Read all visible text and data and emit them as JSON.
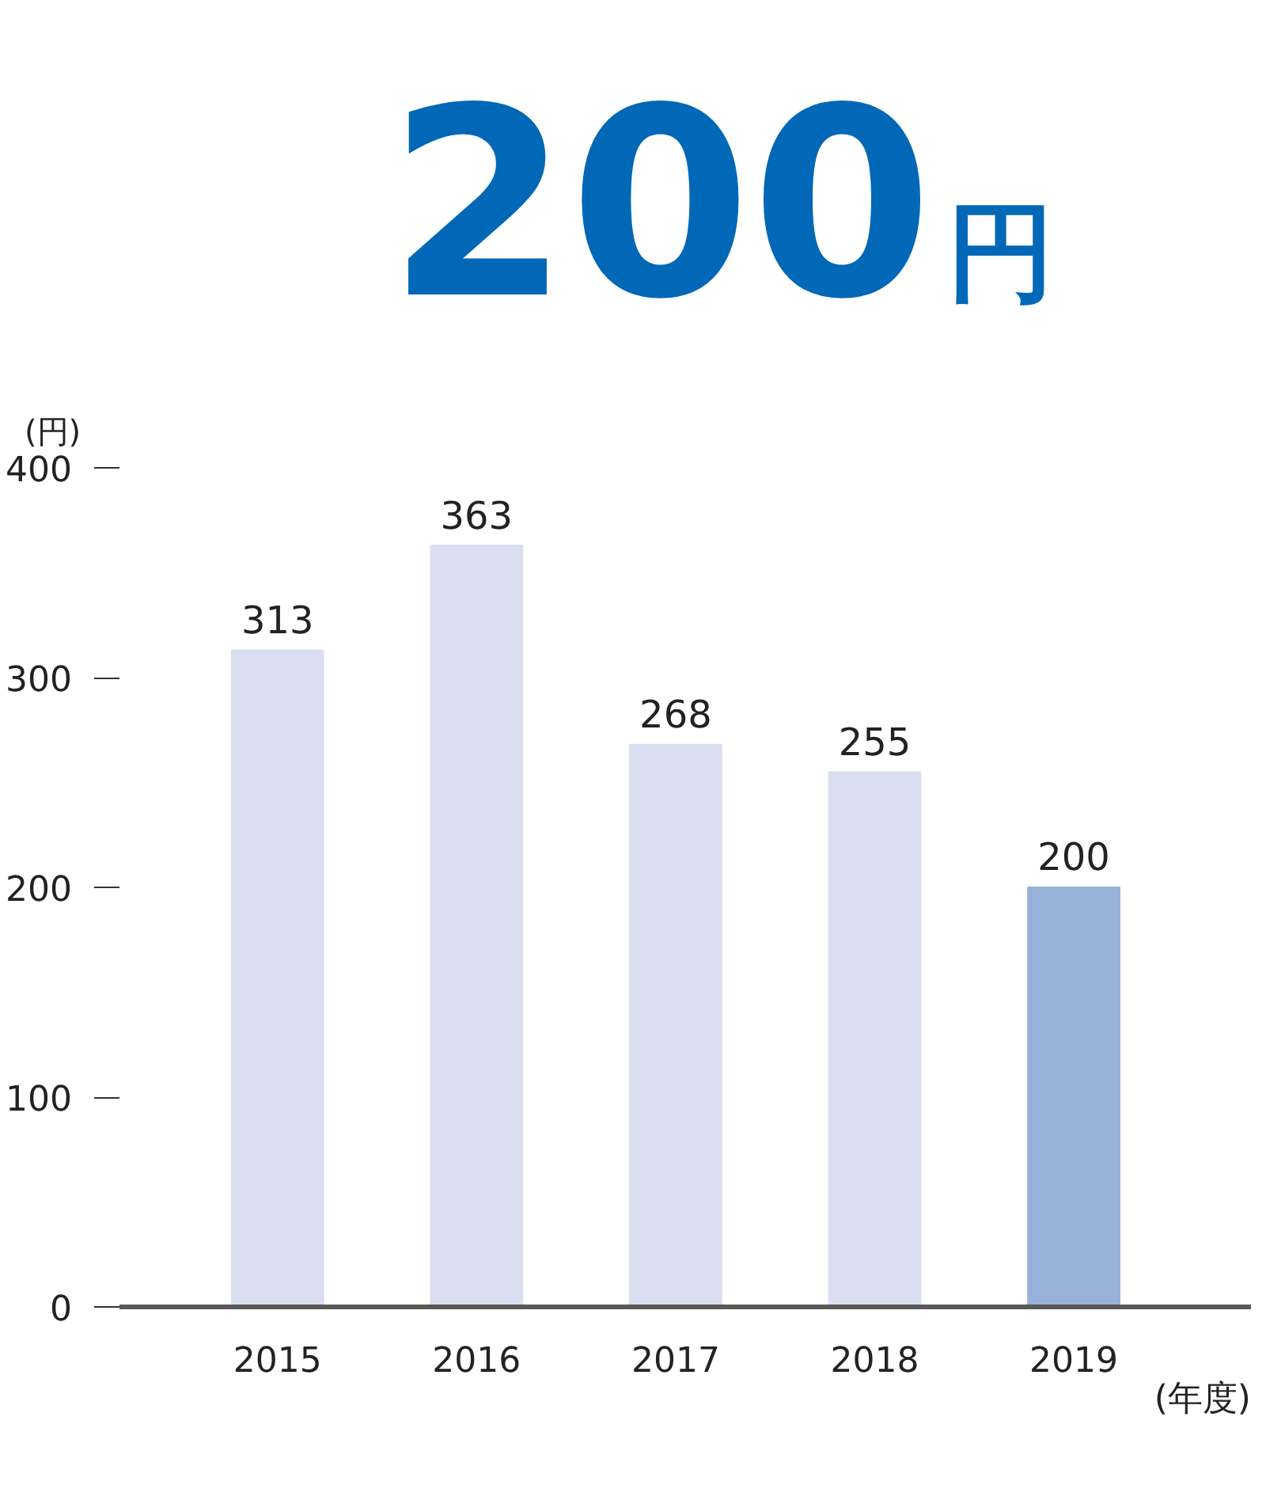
{
  "chart_data": {
    "type": "bar",
    "title": "200円",
    "xlabel": "(年度)",
    "ylabel": "(円)",
    "categories": [
      "2015",
      "2016",
      "2017",
      "2018",
      "2019"
    ],
    "values": [
      313,
      363,
      268,
      255,
      200
    ],
    "colors": [
      "#d9dff0",
      "#d9dff0",
      "#d9dff0",
      "#d9dff0",
      "#97b1db"
    ],
    "ylim": [
      0,
      400
    ],
    "yticks": [
      0,
      100,
      200,
      300,
      400
    ],
    "data_labels": true
  }
}
